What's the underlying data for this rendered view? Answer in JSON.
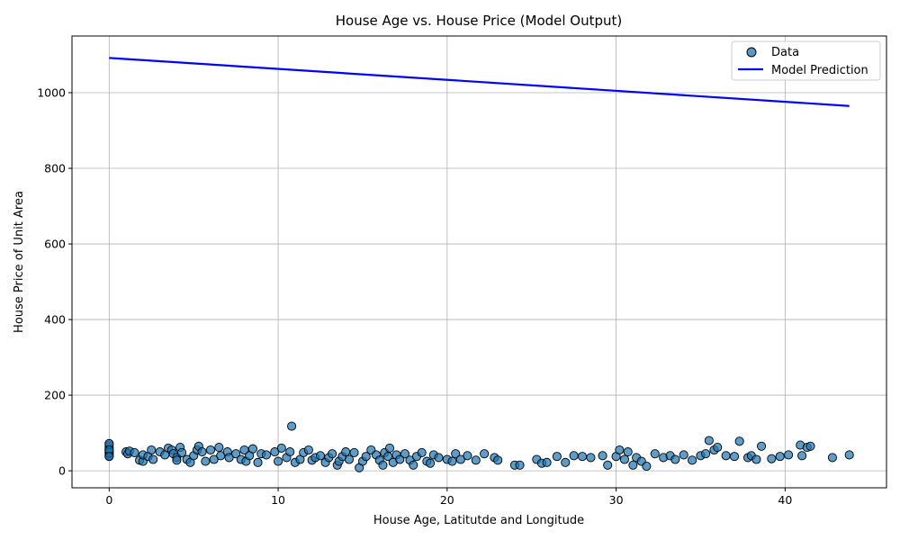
{
  "chart_data": {
    "type": "scatter",
    "title": "House Age vs. House Price (Model Output)",
    "xlabel": "House Age, Latitutde and Longitude",
    "ylabel": "House Price of Unit Area",
    "xlim": [
      -2.2,
      46
    ],
    "ylim": [
      -45,
      1150
    ],
    "xticks": [
      0,
      10,
      20,
      30,
      40
    ],
    "yticks": [
      0,
      200,
      400,
      600,
      800,
      1000
    ],
    "grid": true,
    "legend_position": "top-right",
    "colors": {
      "points": "#1f77b4",
      "point_edge": "#000000",
      "line": "#0000ff",
      "grid": "#b0b0b0"
    },
    "series": [
      {
        "name": "Data",
        "kind": "scatter",
        "points": [
          [
            0,
            40
          ],
          [
            0,
            45
          ],
          [
            0,
            52
          ],
          [
            0,
            57
          ],
          [
            0,
            62
          ],
          [
            0,
            68
          ],
          [
            0,
            72
          ],
          [
            0,
            48
          ],
          [
            0,
            55
          ],
          [
            0,
            38
          ],
          [
            1,
            50
          ],
          [
            1.1,
            45
          ],
          [
            1.2,
            52
          ],
          [
            1.5,
            48
          ],
          [
            1.8,
            28
          ],
          [
            2,
            25
          ],
          [
            2,
            42
          ],
          [
            2.3,
            38
          ],
          [
            2.5,
            55
          ],
          [
            2.6,
            30
          ],
          [
            3,
            50
          ],
          [
            3.3,
            42
          ],
          [
            3.5,
            60
          ],
          [
            3.7,
            55
          ],
          [
            3.8,
            45
          ],
          [
            4,
            35
          ],
          [
            4,
            28
          ],
          [
            4.2,
            62
          ],
          [
            4.3,
            48
          ],
          [
            4.6,
            30
          ],
          [
            4.8,
            22
          ],
          [
            5,
            40
          ],
          [
            5.2,
            55
          ],
          [
            5.3,
            65
          ],
          [
            5.5,
            50
          ],
          [
            5.7,
            25
          ],
          [
            6,
            55
          ],
          [
            6.2,
            30
          ],
          [
            6.5,
            62
          ],
          [
            6.6,
            40
          ],
          [
            7,
            50
          ],
          [
            7.1,
            35
          ],
          [
            7.5,
            45
          ],
          [
            7.8,
            30
          ],
          [
            8,
            55
          ],
          [
            8.1,
            25
          ],
          [
            8.3,
            40
          ],
          [
            8.5,
            58
          ],
          [
            8.8,
            22
          ],
          [
            9,
            45
          ],
          [
            9.3,
            42
          ],
          [
            9.8,
            50
          ],
          [
            10,
            25
          ],
          [
            10.2,
            60
          ],
          [
            10.5,
            35
          ],
          [
            10.7,
            50
          ],
          [
            10.8,
            118
          ],
          [
            11,
            22
          ],
          [
            11.3,
            30
          ],
          [
            11.5,
            48
          ],
          [
            11.8,
            55
          ],
          [
            12,
            28
          ],
          [
            12.2,
            35
          ],
          [
            12.5,
            40
          ],
          [
            12.8,
            22
          ],
          [
            13,
            35
          ],
          [
            13.2,
            45
          ],
          [
            13.5,
            15
          ],
          [
            13.6,
            25
          ],
          [
            13.8,
            38
          ],
          [
            14,
            50
          ],
          [
            14.2,
            30
          ],
          [
            14.5,
            48
          ],
          [
            14.8,
            8
          ],
          [
            15,
            25
          ],
          [
            15.2,
            38
          ],
          [
            15.5,
            55
          ],
          [
            15.8,
            42
          ],
          [
            16,
            28
          ],
          [
            16.2,
            15
          ],
          [
            16.3,
            48
          ],
          [
            16.5,
            38
          ],
          [
            16.6,
            60
          ],
          [
            16.8,
            22
          ],
          [
            17,
            42
          ],
          [
            17.2,
            30
          ],
          [
            17.5,
            45
          ],
          [
            17.8,
            28
          ],
          [
            18,
            15
          ],
          [
            18.2,
            38
          ],
          [
            18.5,
            48
          ],
          [
            18.8,
            25
          ],
          [
            19,
            20
          ],
          [
            19.2,
            42
          ],
          [
            19.5,
            35
          ],
          [
            20,
            30
          ],
          [
            20.3,
            25
          ],
          [
            20.5,
            45
          ],
          [
            20.8,
            30
          ],
          [
            21.2,
            40
          ],
          [
            21.7,
            28
          ],
          [
            22.2,
            45
          ],
          [
            22.8,
            35
          ],
          [
            23,
            28
          ],
          [
            24,
            15
          ],
          [
            24.3,
            15
          ],
          [
            25.3,
            30
          ],
          [
            25.6,
            20
          ],
          [
            25.9,
            22
          ],
          [
            26.5,
            38
          ],
          [
            27,
            22
          ],
          [
            27.5,
            40
          ],
          [
            28,
            38
          ],
          [
            28.5,
            35
          ],
          [
            29.2,
            40
          ],
          [
            29.5,
            15
          ],
          [
            30,
            38
          ],
          [
            30.2,
            55
          ],
          [
            30.5,
            30
          ],
          [
            30.7,
            50
          ],
          [
            31,
            15
          ],
          [
            31.2,
            35
          ],
          [
            31.5,
            25
          ],
          [
            31.8,
            12
          ],
          [
            32.3,
            45
          ],
          [
            32.8,
            35
          ],
          [
            33.2,
            40
          ],
          [
            33.5,
            30
          ],
          [
            34,
            42
          ],
          [
            34.5,
            28
          ],
          [
            35,
            40
          ],
          [
            35.3,
            45
          ],
          [
            35.5,
            80
          ],
          [
            35.8,
            55
          ],
          [
            36,
            62
          ],
          [
            36.5,
            40
          ],
          [
            37,
            38
          ],
          [
            37.3,
            78
          ],
          [
            37.8,
            35
          ],
          [
            38,
            40
          ],
          [
            38.3,
            30
          ],
          [
            38.6,
            65
          ],
          [
            39.2,
            32
          ],
          [
            39.7,
            38
          ],
          [
            40.2,
            42
          ],
          [
            40.9,
            68
          ],
          [
            41,
            40
          ],
          [
            41.3,
            62
          ],
          [
            41.5,
            65
          ],
          [
            42.8,
            35
          ],
          [
            43.8,
            42
          ]
        ]
      },
      {
        "name": "Model Prediction",
        "kind": "line",
        "points": [
          [
            0,
            1092
          ],
          [
            43.8,
            965
          ]
        ]
      }
    ]
  }
}
